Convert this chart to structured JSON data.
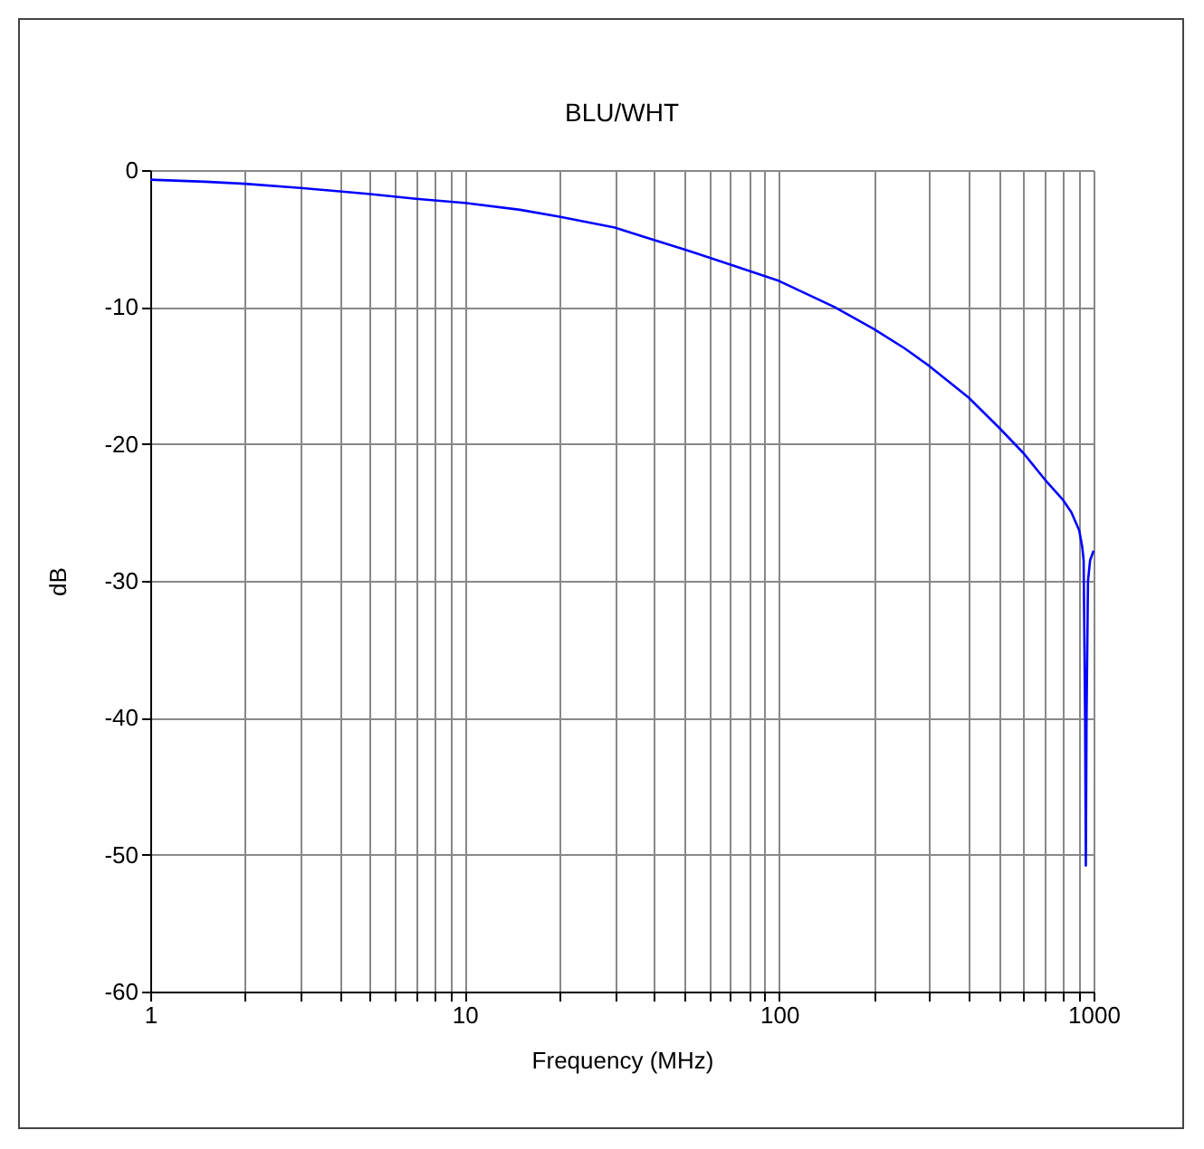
{
  "chart_data": {
    "type": "line",
    "title": "BLU/WHT",
    "xlabel": "Frequency (MHz)",
    "ylabel": "dB",
    "log": "x",
    "grid": true,
    "line_style": "solid",
    "xlim": [
      1,
      1000
    ],
    "ylim": [
      -60,
      0
    ],
    "xticks": [
      1,
      {
        "value": 2,
        "label": null
      },
      {
        "value": 3,
        "label": null
      },
      {
        "value": 4,
        "label": null
      },
      {
        "value": 5,
        "label": null
      },
      {
        "value": 6,
        "label": null
      },
      {
        "value": 7,
        "label": null
      },
      {
        "value": 8,
        "label": null
      },
      {
        "value": 9,
        "label": null
      },
      10,
      {
        "value": 20,
        "label": null
      },
      {
        "value": 30,
        "label": null
      },
      {
        "value": 40,
        "label": null
      },
      {
        "value": 50,
        "label": null
      },
      {
        "value": 60,
        "label": null
      },
      {
        "value": 70,
        "label": null
      },
      {
        "value": 80,
        "label": null
      },
      {
        "value": 90,
        "label": null
      },
      100,
      {
        "value": 200,
        "label": null
      },
      {
        "value": 300,
        "label": null
      },
      {
        "value": 400,
        "label": null
      },
      {
        "value": 500,
        "label": null
      },
      {
        "value": 600,
        "label": null
      },
      {
        "value": 700,
        "label": null
      },
      {
        "value": 800,
        "label": null
      },
      {
        "value": 900,
        "label": null
      },
      1000
    ],
    "yticks": [
      -60,
      -50,
      -40,
      -30,
      -20,
      -10,
      0
    ],
    "x": [
      1,
      1.5,
      2,
      3,
      4,
      5,
      7,
      10,
      15,
      20,
      30,
      40,
      50,
      70,
      100,
      150,
      200,
      250,
      300,
      400,
      500,
      600,
      700,
      800,
      850,
      900,
      920,
      930,
      940,
      945,
      950,
      960,
      975,
      1000
    ],
    "series": [
      {
        "color": "#0000ff",
        "values": [
          -0.7,
          -0.85,
          -1.0,
          -1.3,
          -1.55,
          -1.75,
          -2.1,
          -2.4,
          -2.9,
          -3.4,
          -4.2,
          -5.1,
          -5.8,
          -6.9,
          -8.1,
          -10,
          -11.6,
          -13,
          -14.3,
          -16.6,
          -18.8,
          -20.7,
          -22.6,
          -24.1,
          -25,
          -26.3,
          -27.5,
          -28.5,
          -40,
          -50.8,
          -40,
          -30,
          -28.5,
          -27.8
        ]
      }
    ]
  }
}
